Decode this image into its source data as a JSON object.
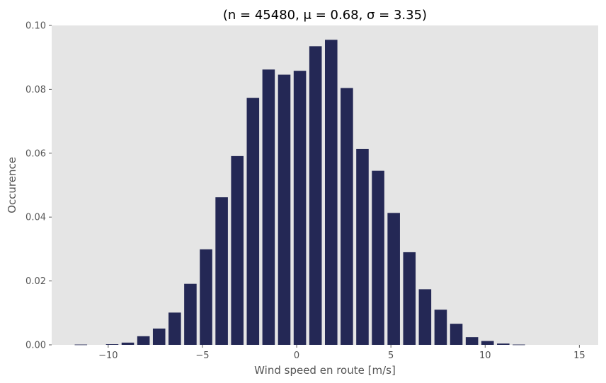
{
  "chart_data": {
    "type": "bar",
    "title": "(n = 45480,  μ = 0.68,  σ = 3.35)",
    "xlabel": "Wind speed en route [m/s]",
    "ylabel": "Occurence",
    "xlim": [
      -13,
      16
    ],
    "ylim": [
      0,
      0.1
    ],
    "x_ticks": [
      -10,
      -5,
      0,
      5,
      10,
      15
    ],
    "x_tick_labels": [
      "−10",
      "−5",
      "0",
      "5",
      "10",
      "15"
    ],
    "y_ticks": [
      0,
      0.02,
      0.04,
      0.06,
      0.08,
      0.1
    ],
    "y_tick_labels": [
      "0.00",
      "0.02",
      "0.04",
      "0.06",
      "0.08",
      "0.10"
    ],
    "grid": false,
    "bar_width": 0.66,
    "x": [
      -11.45,
      -10.62,
      -9.79,
      -8.96,
      -8.13,
      -7.3,
      -6.47,
      -5.64,
      -4.81,
      -3.98,
      -3.15,
      -2.32,
      -1.49,
      -0.66,
      0.17,
      1.0,
      1.83,
      2.66,
      3.49,
      4.32,
      5.15,
      5.98,
      6.81,
      7.64,
      8.47,
      9.3,
      10.13,
      10.96,
      11.79,
      12.62,
      13.45,
      14.28
    ],
    "values": [
      0.0001,
      0.0,
      0.0002,
      0.0007,
      0.0027,
      0.0051,
      0.0101,
      0.0191,
      0.0299,
      0.0462,
      0.0591,
      0.0773,
      0.0862,
      0.0846,
      0.0858,
      0.0935,
      0.0955,
      0.0804,
      0.0613,
      0.0545,
      0.0413,
      0.029,
      0.0174,
      0.011,
      0.0066,
      0.0024,
      0.0012,
      0.0004,
      0.0001,
      0.0,
      0.0,
      0.0
    ],
    "colors": {
      "bar": "#242855",
      "plot_bg": "#e5e5e5",
      "page_bg": "#ffffff",
      "tick_text": "#555555"
    }
  }
}
